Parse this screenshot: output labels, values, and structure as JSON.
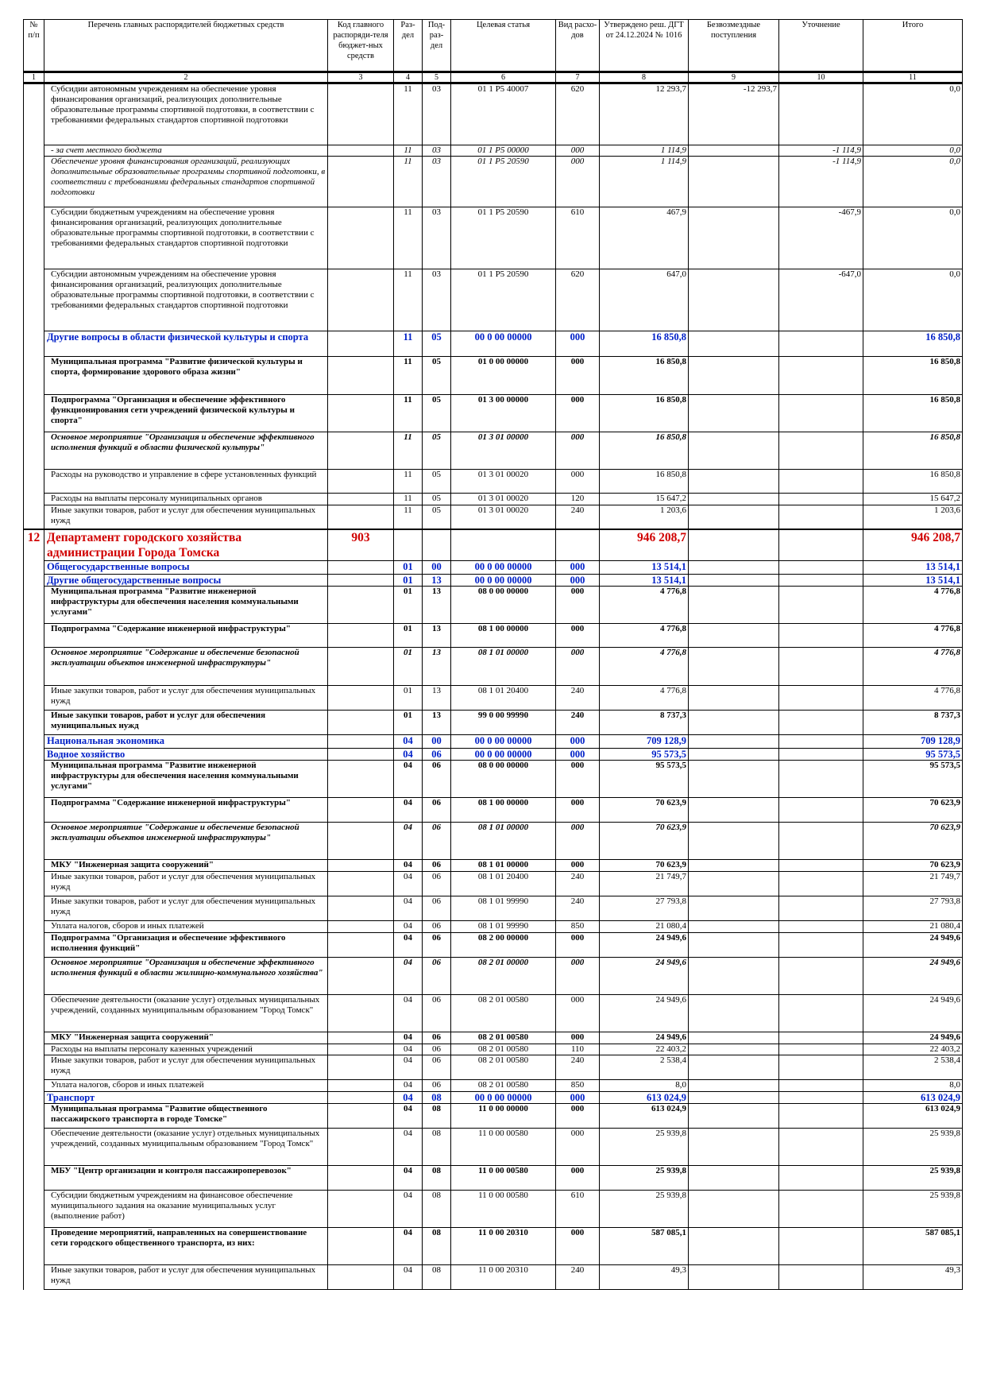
{
  "headers": {
    "num": "№ п/п",
    "name": "Перечень главных распорядителей бюджетных средств",
    "code": "Код главного распоряди-теля бюджет-ных средств",
    "razdel": "Раз-дел",
    "podrazdel": "Под-раз-дел",
    "target": "Целевая статья",
    "vid": "Вид расхо-дов",
    "approved": "Утверждено реш. ДГТ от 24.12.2024 № 1016",
    "free": "Безвозмездные поступления",
    "clar": "Уточнение",
    "total": "Итого"
  },
  "col_numbers": [
    "1",
    "2",
    "3",
    "4",
    "5",
    "6",
    "7",
    "8",
    "9",
    "10",
    "11"
  ],
  "rows": [
    {
      "style": "",
      "name": "Субсидии автономным учреждениям на обеспечение уровня финансирования организаций, реализующих дополнительные образовательные программы спортивной подготовки, в соответствии с требованиями федеральных стандартов спортивной подготовки",
      "r": "11",
      "p": "03",
      "t": "01 1 P5 40007",
      "v": "620",
      "a": "12 293,7",
      "f": "-12 293,7",
      "u": "",
      "s": "0,0",
      "h": 78
    },
    {
      "style": "i",
      "name": "- за счет местного бюджета",
      "r": "11",
      "p": "03",
      "t": "01 1 P5 00000",
      "v": "000",
      "a": "1 114,9",
      "f": "",
      "u": "-1 114,9",
      "s": "0,0",
      "h": 14
    },
    {
      "style": "i",
      "name": "Обеспечение уровня финансирования организаций, реализующих дополнительные образовательные программы спортивной подготовки, в соответствии с требованиями федеральных стандартов спортивной подготовки",
      "r": "11",
      "p": "03",
      "t": "01 1 P5 20590",
      "v": "000",
      "a": "1 114,9",
      "f": "",
      "u": "-1 114,9",
      "s": "0,0",
      "h": 64
    },
    {
      "style": "",
      "name": "Субсидии бюджетным учреждениям на обеспечение уровня финансирования организаций, реализующих дополнительные образовательные программы спортивной подготовки, в соответствии с требованиями федеральных стандартов спортивной подготовки",
      "r": "11",
      "p": "03",
      "t": "01 1 P5 20590",
      "v": "610",
      "a": "467,9",
      "f": "",
      "u": "-467,9",
      "s": "0,0",
      "h": 78
    },
    {
      "style": "",
      "name": "Субсидии автономным учреждениям на обеспечение уровня финансирования организаций, реализующих дополнительные образовательные программы спортивной подготовки, в соответствии с требованиями федеральных стандартов спортивной подготовки",
      "r": "11",
      "p": "03",
      "t": "01 1 P5 20590",
      "v": "620",
      "a": "647,0",
      "f": "",
      "u": "-647,0",
      "s": "0,0",
      "h": 78
    },
    {
      "style": "blue",
      "name": "Другие вопросы в области физической культуры и спорта",
      "r": "11",
      "p": "05",
      "t": "00 0 00 00000",
      "v": "000",
      "a": "16 850,8",
      "f": "",
      "u": "",
      "s": "16 850,8",
      "h": 32
    },
    {
      "style": "b",
      "name": "Муниципальная программа \"Развитие физической культуры и спорта, формирование здорового образа жизни\"",
      "r": "11",
      "p": "05",
      "t": "01 0 00 00000",
      "v": "000",
      "a": "16 850,8",
      "f": "",
      "u": "",
      "s": "16 850,8",
      "h": 48
    },
    {
      "style": "b",
      "name": "Подпрограмма \"Организация и обеспечение эффективного функционирования сети учреждений физической культуры и спорта\"",
      "r": "11",
      "p": "05",
      "t": "01 3 00 00000",
      "v": "000",
      "a": "16 850,8",
      "f": "",
      "u": "",
      "s": "16 850,8",
      "h": 47
    },
    {
      "style": "bi",
      "name": "Основное мероприятие \"Организация и обеспечение эффективного исполнения функций в области физической культуры\"",
      "r": "11",
      "p": "05",
      "t": "01 3 01 00000",
      "v": "000",
      "a": "16 850,8",
      "f": "",
      "u": "",
      "s": "16 850,8",
      "h": 47
    },
    {
      "style": "",
      "name": "Расходы на руководство и управление в сфере установленных функций",
      "r": "11",
      "p": "05",
      "t": "01 3 01 00020",
      "v": "000",
      "a": "16 850,8",
      "f": "",
      "u": "",
      "s": "16 850,8",
      "h": 30
    },
    {
      "style": "",
      "name": "Расходы на выплаты персоналу муниципальных органов",
      "r": "11",
      "p": "05",
      "t": "01 3 01 00020",
      "v": "120",
      "a": "15 647,2",
      "f": "",
      "u": "",
      "s": "15 647,2",
      "h": 15
    },
    {
      "style": "",
      "name": "Иные закупки товаров, работ и услуг для обеспечения муниципальных нужд",
      "r": "11",
      "p": "05",
      "t": "01 3 01 00020",
      "v": "240",
      "a": "1 203,6",
      "f": "",
      "u": "",
      "s": "1 203,6",
      "h": 30
    },
    {
      "style": "red",
      "num": "12",
      "name": "Департамент городского хозяйства администрации Города Томска",
      "code": "903",
      "r": "",
      "p": "",
      "t": "",
      "v": "",
      "a": "946 208,7",
      "f": "",
      "u": "",
      "s": "946 208,7",
      "h": 40
    },
    {
      "style": "blue",
      "name": "Общегосударственные вопросы",
      "r": "01",
      "p": "00",
      "t": "00 0 00 00000",
      "v": "000",
      "a": "13 514,1",
      "f": "",
      "u": "",
      "s": "13 514,1",
      "h": 17
    },
    {
      "style": "blue",
      "name": "Другие общегосударственные вопросы",
      "r": "01",
      "p": "13",
      "t": "00 0 00 00000",
      "v": "000",
      "a": "13 514,1",
      "f": "",
      "u": "",
      "s": "13 514,1",
      "h": 15
    },
    {
      "style": "b",
      "name": "Муниципальная программа \"Развитие инженерной инфраструктуры для обеспечения населения коммунальными услугами\"",
      "r": "01",
      "p": "13",
      "t": "08 0 00 00000",
      "v": "000",
      "a": "4 776,8",
      "f": "",
      "u": "",
      "s": "4 776,8",
      "h": 47
    },
    {
      "style": "b",
      "name": "Подпрограмма \"Содержание инженерной инфраструктуры\"",
      "r": "01",
      "p": "13",
      "t": "08 1 00 00000",
      "v": "000",
      "a": "4 776,8",
      "f": "",
      "u": "",
      "s": "4 776,8",
      "h": 30
    },
    {
      "style": "bi",
      "name": "Основное мероприятие \"Содержание и обеспечение безопасной эксплуатации объектов инженерной инфраструктуры\"",
      "r": "01",
      "p": "13",
      "t": "08 1 01 00000",
      "v": "000",
      "a": "4 776,8",
      "f": "",
      "u": "",
      "s": "4 776,8",
      "h": 48
    },
    {
      "style": "",
      "name": "Иные закупки товаров, работ и услуг для обеспечения муниципальных нужд",
      "r": "01",
      "p": "13",
      "t": "08 1 01 20400",
      "v": "240",
      "a": "4 776,8",
      "f": "",
      "u": "",
      "s": "4 776,8",
      "h": 31
    },
    {
      "style": "b",
      "name": "Иные закупки товаров, работ и услуг для обеспечения муниципальных нужд",
      "r": "01",
      "p": "13",
      "t": "99 0 00 99990",
      "v": "240",
      "a": "8 737,3",
      "f": "",
      "u": "",
      "s": "8 737,3",
      "h": 31
    },
    {
      "style": "blue",
      "name": "Национальная экономика",
      "r": "04",
      "p": "00",
      "t": "00 0 00 00000",
      "v": "000",
      "a": "709 128,9",
      "f": "",
      "u": "",
      "s": "709 128,9",
      "h": 17
    },
    {
      "style": "blue",
      "name": "Водное хозяйство",
      "r": "04",
      "p": "06",
      "t": "00 0 00 00000",
      "v": "000",
      "a": "95 573,5",
      "f": "",
      "u": "",
      "s": "95 573,5",
      "h": 15
    },
    {
      "style": "b",
      "name": "Муниципальная программа \"Развитие инженерной инфраструктуры для обеспечения населения коммунальными услугами\"",
      "r": "04",
      "p": "06",
      "t": "08 0 00 00000",
      "v": "000",
      "a": "95 573,5",
      "f": "",
      "u": "",
      "s": "95 573,5",
      "h": 47
    },
    {
      "style": "b",
      "name": "Подпрограмма \"Содержание инженерной инфраструктуры\"",
      "r": "04",
      "p": "06",
      "t": "08 1 00 00000",
      "v": "000",
      "a": "70 623,9",
      "f": "",
      "u": "",
      "s": "70 623,9",
      "h": 31
    },
    {
      "style": "bi",
      "name": "Основное мероприятие \"Содержание и обеспечение безопасной эксплуатации объектов инженерной инфраструктуры\"",
      "r": "04",
      "p": "06",
      "t": "08 1 01 00000",
      "v": "000",
      "a": "70 623,9",
      "f": "",
      "u": "",
      "s": "70 623,9",
      "h": 47
    },
    {
      "style": "b",
      "name": "МКУ \"Инженерная защита сооружений\"",
      "r": "04",
      "p": "06",
      "t": "08 1 01 00000",
      "v": "000",
      "a": "70 623,9",
      "f": "",
      "u": "",
      "s": "70 623,9",
      "h": 15
    },
    {
      "style": "",
      "name": "Иные закупки товаров, работ и услуг для обеспечения муниципальных нужд",
      "r": "04",
      "p": "06",
      "t": "08 1 01 20400",
      "v": "240",
      "a": "21 749,7",
      "f": "",
      "u": "",
      "s": "21 749,7",
      "h": 31
    },
    {
      "style": "",
      "name": "Иные закупки товаров, работ и услуг для обеспечения муниципальных нужд",
      "r": "04",
      "p": "06",
      "t": "08 1 01 99990",
      "v": "240",
      "a": "27 793,8",
      "f": "",
      "u": "",
      "s": "27 793,8",
      "h": 31
    },
    {
      "style": "",
      "name": "Уплата налогов, сборов и иных платежей",
      "r": "04",
      "p": "06",
      "t": "08 1 01 99990",
      "v": "850",
      "a": "21 080,4",
      "f": "",
      "u": "",
      "s": "21 080,4",
      "h": 15
    },
    {
      "style": "b",
      "name": "Подпрограмма \"Организация и обеспечение эффективного исполнения функций\"",
      "r": "04",
      "p": "06",
      "t": "08 2 00 00000",
      "v": "000",
      "a": "24 949,6",
      "f": "",
      "u": "",
      "s": "24 949,6",
      "h": 31
    },
    {
      "style": "bi",
      "name": "Основное мероприятие \"Организация и обеспечение эффективного исполнения функций в области жилищно-коммунального хозяйства\"",
      "r": "04",
      "p": "06",
      "t": "08 2 01 00000",
      "v": "000",
      "a": "24 949,6",
      "f": "",
      "u": "",
      "s": "24 949,6",
      "h": 47
    },
    {
      "style": "",
      "name": "Обеспечение деятельности (оказание услуг) отдельных муниципальных учреждений, созданных муниципальным образованием \"Город Томск\"",
      "r": "04",
      "p": "06",
      "t": "08 2 01 00580",
      "v": "000",
      "a": "24 949,6",
      "f": "",
      "u": "",
      "s": "24 949,6",
      "h": 47
    },
    {
      "style": "b",
      "name": "МКУ \"Инженерная защита сооружений\"",
      "r": "04",
      "p": "06",
      "t": "08 2 01 00580",
      "v": "000",
      "a": "24 949,6",
      "f": "",
      "u": "",
      "s": "24 949,6",
      "h": 15
    },
    {
      "style": "",
      "name": "Расходы на выплаты персоналу казенных учреждений",
      "r": "04",
      "p": "06",
      "t": "08 2 01 00580",
      "v": "110",
      "a": "22 403,2",
      "f": "",
      "u": "",
      "s": "22 403,2",
      "h": 14
    },
    {
      "style": "",
      "name": "Иные закупки товаров, работ и услуг для обеспечения муниципальных нужд",
      "r": "04",
      "p": "06",
      "t": "08 2 01 00580",
      "v": "240",
      "a": "2 538,4",
      "f": "",
      "u": "",
      "s": "2 538,4",
      "h": 31
    },
    {
      "style": "",
      "name": "Уплата налогов, сборов и иных платежей",
      "r": "04",
      "p": "06",
      "t": "08 2 01 00580",
      "v": "850",
      "a": "8,0",
      "f": "",
      "u": "",
      "s": "8,0",
      "h": 15
    },
    {
      "style": "blue",
      "name": "Транспорт",
      "r": "04",
      "p": "08",
      "t": "00 0 00 00000",
      "v": "000",
      "a": "613 024,9",
      "f": "",
      "u": "",
      "s": "613 024,9",
      "h": 15
    },
    {
      "style": "b",
      "name": "Муниципальная программа \"Развитие общественного пассажирского транспорта в городе Томске\"",
      "r": "04",
      "p": "08",
      "t": "11 0 00 00000",
      "v": "000",
      "a": "613 024,9",
      "f": "",
      "u": "",
      "s": "613 024,9",
      "h": 31
    },
    {
      "style": "",
      "name": "Обеспечение деятельности (оказание услуг) отдельных муниципальных учреждений, созданных муниципальным образованием \"Город Томск\"",
      "r": "04",
      "p": "08",
      "t": "11 0 00 00580",
      "v": "000",
      "a": "25 939,8",
      "f": "",
      "u": "",
      "s": "25 939,8",
      "h": 47
    },
    {
      "style": "b",
      "name": "МБУ \"Центр организации и контроля пассажироперевозок\"",
      "r": "04",
      "p": "08",
      "t": "11 0 00 00580",
      "v": "000",
      "a": "25 939,8",
      "f": "",
      "u": "",
      "s": "25 939,8",
      "h": 31
    },
    {
      "style": "",
      "name": "Субсидии бюджетным учреждениям на финансовое обеспечение муниципального задания на оказание муниципальных услуг (выполнение работ)",
      "r": "04",
      "p": "08",
      "t": "11 0 00 00580",
      "v": "610",
      "a": "25 939,8",
      "f": "",
      "u": "",
      "s": "25 939,8",
      "h": 47
    },
    {
      "style": "b",
      "name": "Проведение мероприятий, направленных на совершенствование сети городского общественного транспорта, из них:",
      "r": "04",
      "p": "08",
      "t": "11 0 00 20310",
      "v": "000",
      "a": "587 085,1",
      "f": "",
      "u": "",
      "s": "587 085,1",
      "h": 47
    },
    {
      "style": "",
      "name": "Иные закупки товаров, работ и услуг для обеспечения муниципальных нужд",
      "r": "04",
      "p": "08",
      "t": "11 0 00 20310",
      "v": "240",
      "a": "49,3",
      "f": "",
      "u": "",
      "s": "49,3",
      "h": 31
    }
  ]
}
